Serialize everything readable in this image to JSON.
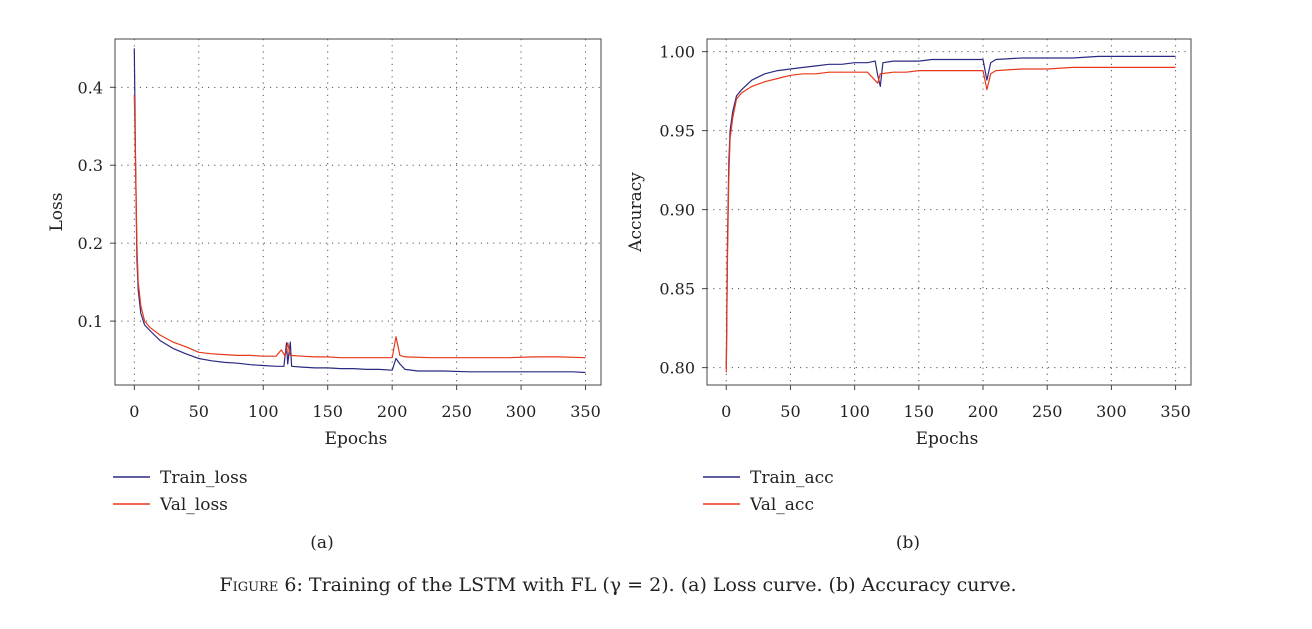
{
  "figure": {
    "caption_label": "Figure 6:",
    "caption_text": "Training of the LSTM with FL (γ = 2). (a) Loss curve. (b) Accuracy curve."
  },
  "colors": {
    "train": "#2b2a82",
    "val": "#e8381b",
    "grid": "#555555"
  },
  "chart_data": [
    {
      "type": "line",
      "subplot_label": "(a)",
      "xlabel": "Epochs",
      "ylabel": "Loss",
      "xlim": [
        -15,
        362
      ],
      "ylim": [
        0.018,
        0.462
      ],
      "xticks": [
        0,
        50,
        100,
        150,
        200,
        250,
        300,
        350
      ],
      "yticks": [
        0.1,
        0.2,
        0.3,
        0.4
      ],
      "ytick_labels": [
        "0.1",
        "0.2",
        "0.3",
        "0.4"
      ],
      "grid": true,
      "legend_position": "bottom-left",
      "series": [
        {
          "name": "Train_loss",
          "color": "#2b2a82",
          "points": [
            [
              0,
              0.45
            ],
            [
              1,
              0.3
            ],
            [
              2,
              0.18
            ],
            [
              3,
              0.14
            ],
            [
              5,
              0.11
            ],
            [
              8,
              0.095
            ],
            [
              12,
              0.088
            ],
            [
              20,
              0.075
            ],
            [
              30,
              0.065
            ],
            [
              40,
              0.058
            ],
            [
              50,
              0.052
            ],
            [
              60,
              0.049
            ],
            [
              70,
              0.047
            ],
            [
              80,
              0.046
            ],
            [
              90,
              0.044
            ],
            [
              100,
              0.043
            ],
            [
              110,
              0.042
            ],
            [
              116,
              0.042
            ],
            [
              118,
              0.072
            ],
            [
              119,
              0.045
            ],
            [
              121,
              0.073
            ],
            [
              122,
              0.042
            ],
            [
              130,
              0.041
            ],
            [
              140,
              0.04
            ],
            [
              150,
              0.04
            ],
            [
              160,
              0.039
            ],
            [
              170,
              0.039
            ],
            [
              180,
              0.038
            ],
            [
              190,
              0.038
            ],
            [
              200,
              0.037
            ],
            [
              203,
              0.052
            ],
            [
              206,
              0.045
            ],
            [
              210,
              0.038
            ],
            [
              220,
              0.036
            ],
            [
              240,
              0.036
            ],
            [
              260,
              0.035
            ],
            [
              280,
              0.035
            ],
            [
              300,
              0.035
            ],
            [
              320,
              0.035
            ],
            [
              340,
              0.035
            ],
            [
              350,
              0.034
            ]
          ]
        },
        {
          "name": "Val_loss",
          "color": "#e8381b",
          "points": [
            [
              0,
              0.39
            ],
            [
              1,
              0.3
            ],
            [
              2,
              0.2
            ],
            [
              3,
              0.15
            ],
            [
              5,
              0.12
            ],
            [
              8,
              0.1
            ],
            [
              12,
              0.092
            ],
            [
              20,
              0.082
            ],
            [
              30,
              0.073
            ],
            [
              40,
              0.067
            ],
            [
              50,
              0.06
            ],
            [
              60,
              0.058
            ],
            [
              70,
              0.057
            ],
            [
              80,
              0.056
            ],
            [
              90,
              0.056
            ],
            [
              100,
              0.055
            ],
            [
              110,
              0.055
            ],
            [
              114,
              0.063
            ],
            [
              117,
              0.055
            ],
            [
              119,
              0.072
            ],
            [
              121,
              0.056
            ],
            [
              130,
              0.055
            ],
            [
              140,
              0.054
            ],
            [
              150,
              0.054
            ],
            [
              160,
              0.053
            ],
            [
              170,
              0.053
            ],
            [
              180,
              0.053
            ],
            [
              190,
              0.053
            ],
            [
              200,
              0.053
            ],
            [
              203,
              0.08
            ],
            [
              206,
              0.056
            ],
            [
              210,
              0.054
            ],
            [
              230,
              0.053
            ],
            [
              250,
              0.053
            ],
            [
              270,
              0.053
            ],
            [
              290,
              0.053
            ],
            [
              310,
              0.054
            ],
            [
              330,
              0.054
            ],
            [
              350,
              0.053
            ]
          ]
        }
      ]
    },
    {
      "type": "line",
      "subplot_label": "(b)",
      "xlabel": "Epochs",
      "ylabel": "Accuracy",
      "xlim": [
        -15,
        362
      ],
      "ylim": [
        0.789,
        1.008
      ],
      "xticks": [
        0,
        50,
        100,
        150,
        200,
        250,
        300,
        350
      ],
      "yticks": [
        0.8,
        0.85,
        0.9,
        0.95,
        1.0
      ],
      "ytick_labels": [
        "0.80",
        "0.85",
        "0.90",
        "0.95",
        "1.00"
      ],
      "grid": true,
      "legend_position": "bottom-left",
      "series": [
        {
          "name": "Train_acc",
          "color": "#2b2a82",
          "points": [
            [
              0,
              0.8
            ],
            [
              1,
              0.88
            ],
            [
              2,
              0.93
            ],
            [
              3,
              0.95
            ],
            [
              5,
              0.962
            ],
            [
              8,
              0.972
            ],
            [
              12,
              0.976
            ],
            [
              20,
              0.982
            ],
            [
              30,
              0.986
            ],
            [
              40,
              0.988
            ],
            [
              50,
              0.989
            ],
            [
              60,
              0.99
            ],
            [
              70,
              0.991
            ],
            [
              80,
              0.992
            ],
            [
              90,
              0.992
            ],
            [
              100,
              0.993
            ],
            [
              110,
              0.993
            ],
            [
              116,
              0.994
            ],
            [
              118,
              0.985
            ],
            [
              120,
              0.978
            ],
            [
              122,
              0.993
            ],
            [
              130,
              0.994
            ],
            [
              140,
              0.994
            ],
            [
              150,
              0.994
            ],
            [
              160,
              0.995
            ],
            [
              170,
              0.995
            ],
            [
              180,
              0.995
            ],
            [
              190,
              0.995
            ],
            [
              200,
              0.995
            ],
            [
              203,
              0.982
            ],
            [
              206,
              0.993
            ],
            [
              210,
              0.995
            ],
            [
              230,
              0.996
            ],
            [
              250,
              0.996
            ],
            [
              270,
              0.996
            ],
            [
              290,
              0.997
            ],
            [
              310,
              0.997
            ],
            [
              330,
              0.997
            ],
            [
              350,
              0.997
            ]
          ]
        },
        {
          "name": "Val_acc",
          "color": "#e8381b",
          "points": [
            [
              0,
              0.797
            ],
            [
              1,
              0.87
            ],
            [
              2,
              0.92
            ],
            [
              3,
              0.945
            ],
            [
              5,
              0.958
            ],
            [
              8,
              0.97
            ],
            [
              12,
              0.974
            ],
            [
              20,
              0.978
            ],
            [
              30,
              0.981
            ],
            [
              40,
              0.983
            ],
            [
              50,
              0.985
            ],
            [
              60,
              0.986
            ],
            [
              70,
              0.986
            ],
            [
              80,
              0.987
            ],
            [
              90,
              0.987
            ],
            [
              100,
              0.987
            ],
            [
              110,
              0.987
            ],
            [
              118,
              0.98
            ],
            [
              120,
              0.986
            ],
            [
              130,
              0.987
            ],
            [
              140,
              0.987
            ],
            [
              150,
              0.988
            ],
            [
              160,
              0.988
            ],
            [
              170,
              0.988
            ],
            [
              180,
              0.988
            ],
            [
              190,
              0.988
            ],
            [
              200,
              0.988
            ],
            [
              203,
              0.976
            ],
            [
              206,
              0.986
            ],
            [
              210,
              0.988
            ],
            [
              230,
              0.989
            ],
            [
              250,
              0.989
            ],
            [
              270,
              0.99
            ],
            [
              290,
              0.99
            ],
            [
              310,
              0.99
            ],
            [
              330,
              0.99
            ],
            [
              350,
              0.99
            ]
          ]
        }
      ]
    }
  ]
}
